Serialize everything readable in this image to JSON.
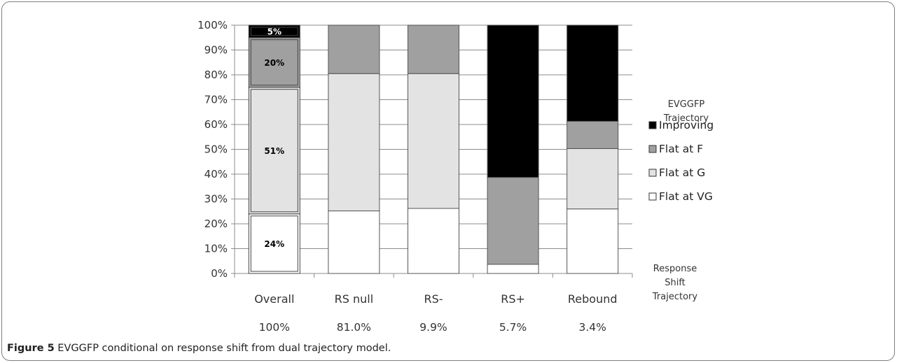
{
  "figure": {
    "caption_label": "Figure 5",
    "caption_text": " EVGGFP conditional on response shift from dual trajectory model."
  },
  "chart_data": {
    "type": "bar",
    "stacked": "percent",
    "categories": [
      "Overall",
      "RS null",
      "RS-",
      "RS+",
      "Rebound"
    ],
    "category_percentages": [
      "100%",
      "81.0%",
      "9.9%",
      "5.7%",
      "3.4%"
    ],
    "series": [
      {
        "name": "Flat at VG",
        "values": [
          24,
          25.2,
          26.2,
          3.7,
          26
        ],
        "color": "#ffffff"
      },
      {
        "name": "Flat at G",
        "values": [
          51,
          55.3,
          54.3,
          0,
          24.3
        ],
        "color": "#e3e3e3"
      },
      {
        "name": "Flat at F",
        "values": [
          20,
          19.5,
          19.5,
          35,
          11
        ],
        "color": "#a0a0a0"
      },
      {
        "name": "Improving",
        "values": [
          5,
          0,
          0,
          61.3,
          38.7
        ],
        "color": "#000000"
      }
    ],
    "data_labels": {
      "category": "Overall",
      "labels": [
        "24%",
        "51%",
        "20%",
        "5%"
      ]
    },
    "ylim": [
      0,
      100
    ],
    "y_ticks": [
      "0%",
      "10%",
      "20%",
      "30%",
      "40%",
      "50%",
      "60%",
      "70%",
      "80%",
      "90%",
      "100%"
    ],
    "grid": true,
    "legend": {
      "title_lines": [
        "EVGGFP",
        "Trajectory"
      ],
      "order": [
        "Improving",
        "Flat at F",
        "Flat at G",
        "Flat at VG"
      ],
      "placement": "right"
    },
    "x_side_title_lines": [
      "Response",
      "Shift",
      "Trajectory"
    ]
  }
}
